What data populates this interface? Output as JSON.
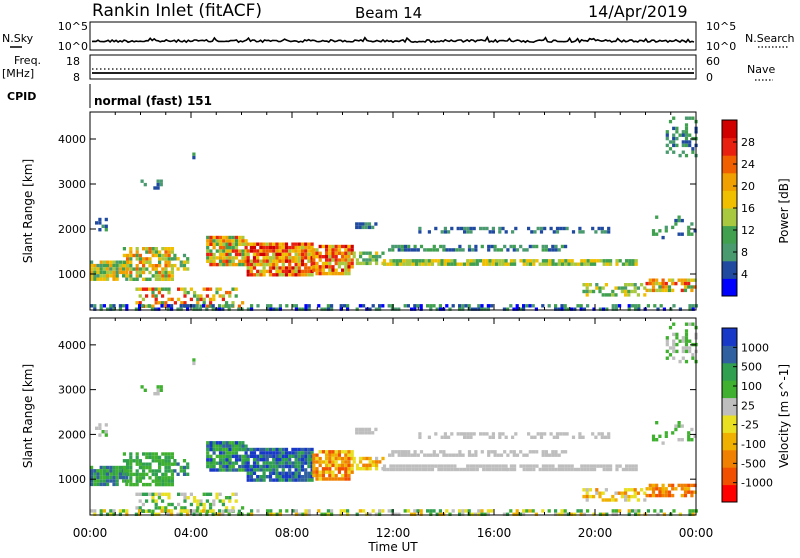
{
  "header": {
    "station": "Rankin Inlet (fitACF)",
    "beam": "Beam 14",
    "date": "14/Apr/2019"
  },
  "panels": {
    "nsky": {
      "left_label": "N.Sky",
      "right_label": "N.Search",
      "left_ticks": [
        "10^5",
        "10^0"
      ],
      "right_ticks": [
        "10^5",
        "10^0"
      ]
    },
    "freq": {
      "left_label_1": "Freq.",
      "left_label_2": "[MHz]",
      "right_label": "Nave",
      "left_ticks": [
        "18",
        "8"
      ],
      "right_ticks": [
        "60",
        "0"
      ]
    },
    "cpid": {
      "label": "CPID",
      "value": "normal (fast) 151"
    }
  },
  "colors": {
    "power": [
      "#0000ff",
      "#1f4aa0",
      "#4a9a70",
      "#40a050",
      "#a8c840",
      "#f0c000",
      "#f0a000",
      "#f06000",
      "#e82010",
      "#d00000"
    ],
    "velocity": [
      "#ff0000",
      "#f05000",
      "#f08000",
      "#f0b000",
      "#e8e020",
      "#bebebe",
      "#40b030",
      "#30a050",
      "#3060a0",
      "#1838c8"
    ],
    "ground_scatter": "#bebebe"
  },
  "chart_data": [
    {
      "type": "heatmap",
      "title": "",
      "xlabel": "",
      "ylabel": "Slant Range [km]",
      "colorbar_label": "Power [dB]",
      "x_ticks": [
        "00:00",
        "04:00",
        "08:00",
        "12:00",
        "16:00",
        "20:00",
        "00:00"
      ],
      "y_ticks": [
        "1000",
        "2000",
        "3000",
        "4000"
      ],
      "ylim": [
        200,
        4600
      ],
      "xlim_hours": [
        0,
        24
      ],
      "colorbar_ticks": [
        "4",
        "8",
        "12",
        "16",
        "20",
        "24",
        "28"
      ],
      "colorbar_range": [
        0,
        32
      ]
    },
    {
      "type": "heatmap",
      "title": "",
      "xlabel": "Time UT",
      "ylabel": "Slant Range [km]",
      "colorbar_label": "Velocity [m s^-1]",
      "x_ticks": [
        "00:00",
        "04:00",
        "08:00",
        "12:00",
        "16:00",
        "20:00",
        "00:00"
      ],
      "y_ticks": [
        "1000",
        "2000",
        "3000",
        "4000"
      ],
      "ylim": [
        200,
        4600
      ],
      "xlim_hours": [
        0,
        24
      ],
      "colorbar_ticks": [
        "1000",
        "500",
        "100",
        "25",
        "-25",
        "-100",
        "-500",
        "-1000"
      ]
    }
  ]
}
